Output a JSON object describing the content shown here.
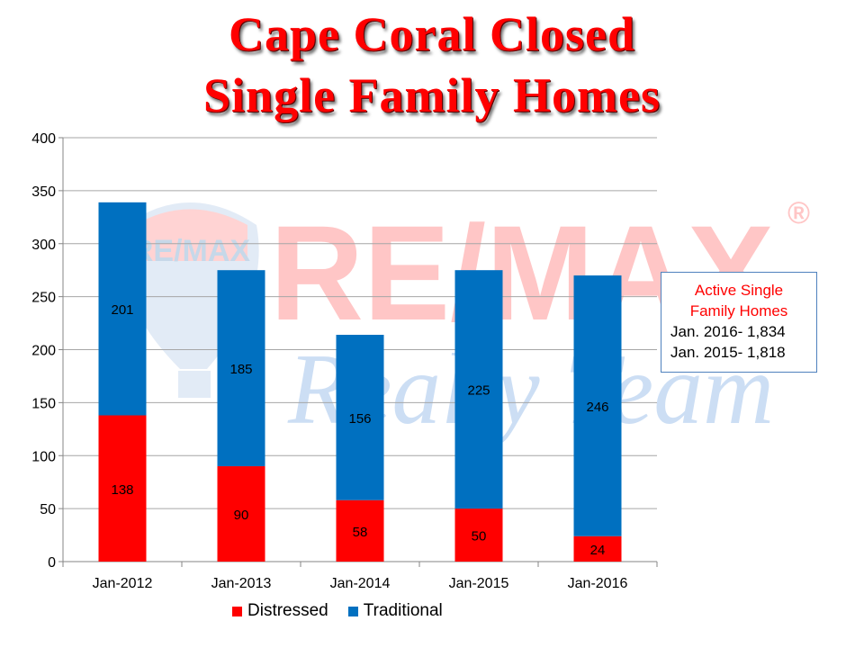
{
  "title": {
    "line1": "Cape Coral Closed",
    "line2": "Single Family Homes"
  },
  "watermark": {
    "brand": "RE/MAX",
    "reg": "®",
    "tagline": "Realty Team",
    "balloon_text": "RE/MAX"
  },
  "info_box": {
    "header": "Active Single Family Homes",
    "line1": "Jan. 2016- 1,834",
    "line2": "Jan. 2015- 1,818"
  },
  "colors": {
    "distressed": "#ff0000",
    "traditional": "#0070c0",
    "title": "#ff0000"
  },
  "chart_data": {
    "type": "bar",
    "stacked": true,
    "categories": [
      "Jan-2012",
      "Jan-2013",
      "Jan-2014",
      "Jan-2015",
      "Jan-2016"
    ],
    "series": [
      {
        "name": "Distressed",
        "values": [
          138,
          90,
          58,
          50,
          24
        ]
      },
      {
        "name": "Traditional",
        "values": [
          201,
          185,
          156,
          225,
          246
        ]
      }
    ],
    "ylim": [
      0,
      400
    ],
    "yticks": [
      0,
      50,
      100,
      150,
      200,
      250,
      300,
      350,
      400
    ],
    "grid": true,
    "legend": "bottom"
  }
}
